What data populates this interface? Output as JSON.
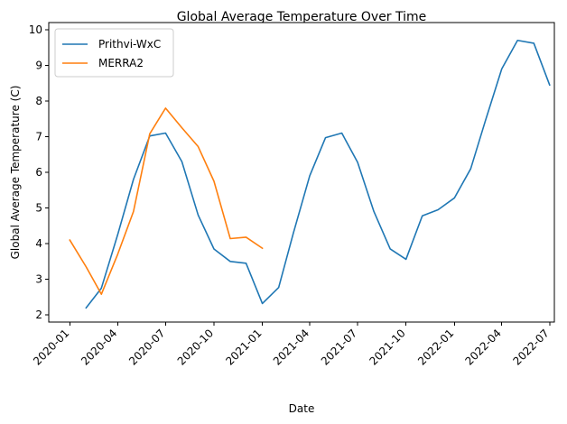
{
  "chart_data": {
    "type": "line",
    "title": "Global Average Temperature Over Time",
    "xlabel": "Date",
    "ylabel": "Global Average Temperature (C)",
    "xlim": [
      "2019-11-22",
      "2022-07-10"
    ],
    "ylim": [
      1.8,
      10.2
    ],
    "x_ticks": [
      "2020-01",
      "2020-04",
      "2020-07",
      "2020-10",
      "2021-01",
      "2021-04",
      "2021-07",
      "2021-10",
      "2022-01",
      "2022-04",
      "2022-07"
    ],
    "y_ticks": [
      2,
      3,
      4,
      5,
      6,
      7,
      8,
      9,
      10
    ],
    "grid": false,
    "legend": "top-left",
    "series": [
      {
        "name": "Prithvi-WxC",
        "color": "#1f77b4",
        "points": [
          [
            "2020-02-01",
            2.2
          ],
          [
            "2020-03-01",
            2.75
          ],
          [
            "2020-04-01",
            4.25
          ],
          [
            "2020-05-01",
            5.8
          ],
          [
            "2020-06-01",
            7.02
          ],
          [
            "2020-07-01",
            7.1
          ],
          [
            "2020-08-01",
            6.3
          ],
          [
            "2020-09-01",
            4.8
          ],
          [
            "2020-10-01",
            3.85
          ],
          [
            "2020-11-01",
            3.5
          ],
          [
            "2020-12-01",
            3.45
          ],
          [
            "2021-01-01",
            2.32
          ],
          [
            "2021-02-01",
            2.77
          ],
          [
            "2021-03-01",
            4.3
          ],
          [
            "2021-04-01",
            5.9
          ],
          [
            "2021-05-01",
            6.97
          ],
          [
            "2021-06-01",
            7.1
          ],
          [
            "2021-07-01",
            6.28
          ],
          [
            "2021-08-01",
            4.9
          ],
          [
            "2021-09-01",
            3.85
          ],
          [
            "2021-10-01",
            3.56
          ],
          [
            "2021-11-01",
            4.78
          ],
          [
            "2021-12-01",
            4.95
          ],
          [
            "2022-01-01",
            5.28
          ],
          [
            "2022-02-01",
            6.1
          ],
          [
            "2022-03-01",
            7.45
          ],
          [
            "2022-04-01",
            8.9
          ],
          [
            "2022-05-01",
            9.7
          ],
          [
            "2022-06-01",
            9.62
          ],
          [
            "2022-07-01",
            8.45
          ]
        ]
      },
      {
        "name": "MERRA2",
        "color": "#ff7f0e",
        "points": [
          [
            "2020-01-01",
            4.1
          ],
          [
            "2020-02-01",
            3.35
          ],
          [
            "2020-03-01",
            2.58
          ],
          [
            "2020-04-01",
            3.7
          ],
          [
            "2020-05-01",
            4.9
          ],
          [
            "2020-06-01",
            7.08
          ],
          [
            "2020-07-01",
            7.8
          ],
          [
            "2020-08-01",
            7.25
          ],
          [
            "2020-09-01",
            6.72
          ],
          [
            "2020-10-01",
            5.75
          ],
          [
            "2020-11-01",
            4.14
          ],
          [
            "2020-12-01",
            4.18
          ],
          [
            "2021-01-01",
            3.87
          ]
        ]
      }
    ]
  }
}
